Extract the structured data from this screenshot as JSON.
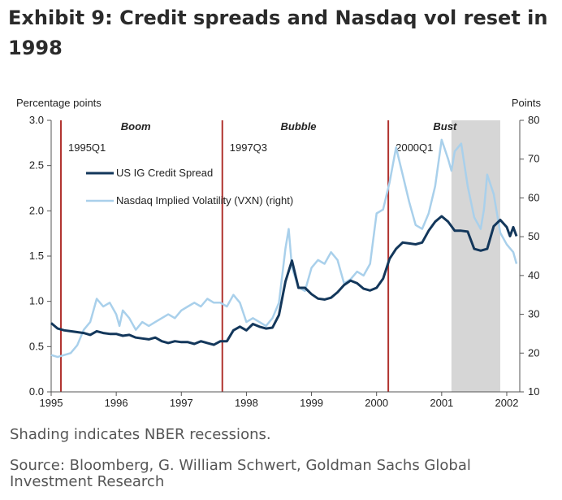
{
  "header": {
    "title": "Exhibit 9: Credit spreads and Nasdaq vol reset in 1998"
  },
  "footer": {
    "note": "Shading indicates NBER recessions.",
    "source": "Source: Bloomberg, G. William Schwert, Goldman Sachs Global Investment Research"
  },
  "colors": {
    "credit": "#13375b",
    "vxn": "#a9d0eb",
    "marker": "#b0322e",
    "shade": "#d6d6d6"
  },
  "chart_data": {
    "type": "line",
    "ylabel": "Percentage points",
    "y2label": "Points",
    "xlim": [
      1995.0,
      2002.2
    ],
    "ylim": [
      0,
      3.0
    ],
    "y2lim": [
      10,
      80
    ],
    "xticks": [
      {
        "v": 1995,
        "label": "1995"
      },
      {
        "v": 1996,
        "label": "1996"
      },
      {
        "v": 1997,
        "label": "1997"
      },
      {
        "v": 1998,
        "label": "1998"
      },
      {
        "v": 1999,
        "label": "1999"
      },
      {
        "v": 2000,
        "label": "2000"
      },
      {
        "v": 2001,
        "label": "2001"
      },
      {
        "v": 2002,
        "label": "2002"
      }
    ],
    "yticks": [
      {
        "v": 0,
        "label": "0.0"
      },
      {
        "v": 0.5,
        "label": "0.5"
      },
      {
        "v": 1.0,
        "label": "1.0"
      },
      {
        "v": 1.5,
        "label": "1.5"
      },
      {
        "v": 2.0,
        "label": "2.0"
      },
      {
        "v": 2.5,
        "label": "2.5"
      },
      {
        "v": 3.0,
        "label": "3.0"
      }
    ],
    "y2ticks": [
      {
        "v": 10,
        "label": "10"
      },
      {
        "v": 20,
        "label": "20"
      },
      {
        "v": 30,
        "label": "30"
      },
      {
        "v": 40,
        "label": "40"
      },
      {
        "v": 50,
        "label": "50"
      },
      {
        "v": 60,
        "label": "60"
      },
      {
        "v": 70,
        "label": "70"
      },
      {
        "v": 80,
        "label": "80"
      }
    ],
    "recession": [
      2001.15,
      2001.9
    ],
    "markers": [
      {
        "x": 1995.15,
        "label": "1995Q1"
      },
      {
        "x": 1997.63,
        "label": "1997Q3"
      },
      {
        "x": 2000.18,
        "label": "2000Q1"
      }
    ],
    "eras": [
      {
        "label": "Boom",
        "x": 1996.3
      },
      {
        "label": "Bubble",
        "x": 1998.8
      },
      {
        "label": "Bust",
        "x": 2001.05
      }
    ],
    "legend": {
      "placement": "top-left"
    },
    "series": [
      {
        "name": "US IG Credit Spread",
        "axis": "left",
        "points": [
          [
            1995.0,
            0.76
          ],
          [
            1995.1,
            0.7
          ],
          [
            1995.2,
            0.68
          ],
          [
            1995.3,
            0.67
          ],
          [
            1995.4,
            0.66
          ],
          [
            1995.5,
            0.65
          ],
          [
            1995.6,
            0.63
          ],
          [
            1995.7,
            0.67
          ],
          [
            1995.8,
            0.65
          ],
          [
            1995.9,
            0.64
          ],
          [
            1996.0,
            0.64
          ],
          [
            1996.1,
            0.62
          ],
          [
            1996.2,
            0.63
          ],
          [
            1996.3,
            0.6
          ],
          [
            1996.4,
            0.59
          ],
          [
            1996.5,
            0.58
          ],
          [
            1996.6,
            0.6
          ],
          [
            1996.7,
            0.56
          ],
          [
            1996.8,
            0.54
          ],
          [
            1996.9,
            0.56
          ],
          [
            1997.0,
            0.55
          ],
          [
            1997.1,
            0.55
          ],
          [
            1997.2,
            0.53
          ],
          [
            1997.3,
            0.56
          ],
          [
            1997.4,
            0.54
          ],
          [
            1997.5,
            0.52
          ],
          [
            1997.6,
            0.56
          ],
          [
            1997.7,
            0.56
          ],
          [
            1997.8,
            0.68
          ],
          [
            1997.9,
            0.72
          ],
          [
            1998.0,
            0.68
          ],
          [
            1998.1,
            0.75
          ],
          [
            1998.2,
            0.72
          ],
          [
            1998.3,
            0.7
          ],
          [
            1998.4,
            0.71
          ],
          [
            1998.5,
            0.85
          ],
          [
            1998.6,
            1.22
          ],
          [
            1998.7,
            1.45
          ],
          [
            1998.8,
            1.15
          ],
          [
            1998.9,
            1.15
          ],
          [
            1999.0,
            1.08
          ],
          [
            1999.1,
            1.03
          ],
          [
            1999.2,
            1.02
          ],
          [
            1999.3,
            1.04
          ],
          [
            1999.4,
            1.1
          ],
          [
            1999.5,
            1.18
          ],
          [
            1999.6,
            1.23
          ],
          [
            1999.7,
            1.2
          ],
          [
            1999.8,
            1.14
          ],
          [
            1999.9,
            1.12
          ],
          [
            2000.0,
            1.15
          ],
          [
            2000.1,
            1.25
          ],
          [
            2000.2,
            1.47
          ],
          [
            2000.3,
            1.58
          ],
          [
            2000.4,
            1.65
          ],
          [
            2000.5,
            1.64
          ],
          [
            2000.6,
            1.63
          ],
          [
            2000.7,
            1.65
          ],
          [
            2000.8,
            1.78
          ],
          [
            2000.9,
            1.88
          ],
          [
            2001.0,
            1.94
          ],
          [
            2001.1,
            1.88
          ],
          [
            2001.2,
            1.78
          ],
          [
            2001.3,
            1.78
          ],
          [
            2001.4,
            1.77
          ],
          [
            2001.5,
            1.58
          ],
          [
            2001.6,
            1.56
          ],
          [
            2001.7,
            1.58
          ],
          [
            2001.8,
            1.83
          ],
          [
            2001.9,
            1.9
          ],
          [
            2002.0,
            1.82
          ],
          [
            2002.05,
            1.72
          ],
          [
            2002.1,
            1.82
          ],
          [
            2002.15,
            1.72
          ]
        ]
      },
      {
        "name": "Nasdaq Implied Volatility (VXN) (right)",
        "axis": "right",
        "points": [
          [
            1995.0,
            19.5
          ],
          [
            1995.1,
            19.0
          ],
          [
            1995.2,
            19.5
          ],
          [
            1995.3,
            20.0
          ],
          [
            1995.4,
            22.0
          ],
          [
            1995.5,
            26.0
          ],
          [
            1995.6,
            28.0
          ],
          [
            1995.7,
            34.0
          ],
          [
            1995.8,
            32.0
          ],
          [
            1995.9,
            33.0
          ],
          [
            1996.0,
            30.0
          ],
          [
            1996.05,
            27.0
          ],
          [
            1996.1,
            31.0
          ],
          [
            1996.2,
            29.0
          ],
          [
            1996.3,
            26.0
          ],
          [
            1996.4,
            28.0
          ],
          [
            1996.5,
            27.0
          ],
          [
            1996.6,
            28.0
          ],
          [
            1996.7,
            29.0
          ],
          [
            1996.8,
            30.0
          ],
          [
            1996.9,
            29.0
          ],
          [
            1997.0,
            31.0
          ],
          [
            1997.1,
            32.0
          ],
          [
            1997.2,
            33.0
          ],
          [
            1997.3,
            32.0
          ],
          [
            1997.4,
            34.0
          ],
          [
            1997.5,
            33.0
          ],
          [
            1997.6,
            33.0
          ],
          [
            1997.7,
            32.0
          ],
          [
            1997.8,
            35.0
          ],
          [
            1997.9,
            33.0
          ],
          [
            1998.0,
            28.0
          ],
          [
            1998.1,
            29.0
          ],
          [
            1998.2,
            28.0
          ],
          [
            1998.3,
            27.0
          ],
          [
            1998.4,
            29.0
          ],
          [
            1998.5,
            33.0
          ],
          [
            1998.6,
            47.0
          ],
          [
            1998.65,
            52.0
          ],
          [
            1998.7,
            42.0
          ],
          [
            1998.8,
            37.0
          ],
          [
            1998.9,
            36.0
          ],
          [
            1999.0,
            42.0
          ],
          [
            1999.1,
            44.0
          ],
          [
            1999.2,
            43.0
          ],
          [
            1999.3,
            46.0
          ],
          [
            1999.4,
            44.0
          ],
          [
            1999.5,
            38.0
          ],
          [
            1999.6,
            39.0
          ],
          [
            1999.7,
            41.0
          ],
          [
            1999.8,
            40.0
          ],
          [
            1999.9,
            43.0
          ],
          [
            2000.0,
            56.0
          ],
          [
            2000.1,
            57.0
          ],
          [
            2000.2,
            64.0
          ],
          [
            2000.3,
            73.0
          ],
          [
            2000.4,
            66.0
          ],
          [
            2000.5,
            59.0
          ],
          [
            2000.6,
            53.0
          ],
          [
            2000.7,
            52.0
          ],
          [
            2000.8,
            56.0
          ],
          [
            2000.9,
            63.0
          ],
          [
            2001.0,
            75.0
          ],
          [
            2001.1,
            70.0
          ],
          [
            2001.15,
            67.0
          ],
          [
            2001.2,
            72.0
          ],
          [
            2001.3,
            74.0
          ],
          [
            2001.4,
            63.0
          ],
          [
            2001.5,
            55.0
          ],
          [
            2001.6,
            52.0
          ],
          [
            2001.65,
            57.0
          ],
          [
            2001.7,
            66.0
          ],
          [
            2001.8,
            61.0
          ],
          [
            2001.9,
            51.0
          ],
          [
            2002.0,
            48.0
          ],
          [
            2002.1,
            46.0
          ],
          [
            2002.15,
            43.0
          ]
        ]
      }
    ]
  }
}
